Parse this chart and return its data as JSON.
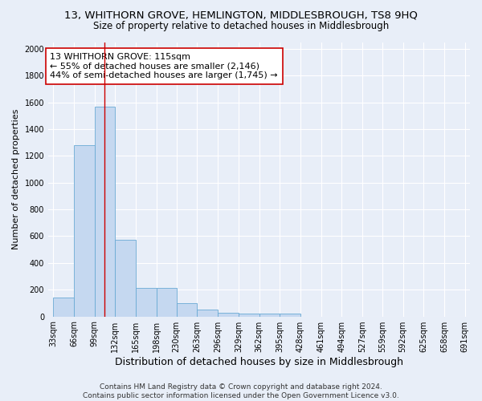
{
  "title": "13, WHITHORN GROVE, HEMLINGTON, MIDDLESBROUGH, TS8 9HQ",
  "subtitle": "Size of property relative to detached houses in Middlesbrough",
  "xlabel": "Distribution of detached houses by size in Middlesbrough",
  "ylabel": "Number of detached properties",
  "bin_edges": [
    33,
    66,
    99,
    132,
    165,
    198,
    230,
    263,
    296,
    329,
    362,
    395,
    428,
    461,
    494,
    527,
    559,
    592,
    625,
    658,
    691
  ],
  "bar_heights": [
    140,
    1280,
    1570,
    570,
    215,
    215,
    100,
    50,
    25,
    20,
    20,
    20,
    0,
    0,
    0,
    0,
    0,
    0,
    0,
    0
  ],
  "bar_color": "#c5d8f0",
  "bar_edge_color": "#6aaad4",
  "background_color": "#e8eef8",
  "grid_color": "#ffffff",
  "red_line_x": 115,
  "red_line_color": "#cc0000",
  "annotation_text": "13 WHITHORN GROVE: 115sqm\n← 55% of detached houses are smaller (2,146)\n44% of semi-detached houses are larger (1,745) →",
  "annotation_box_color": "#ffffff",
  "annotation_box_edge": "#cc0000",
  "ylim": [
    0,
    2050
  ],
  "yticks": [
    0,
    200,
    400,
    600,
    800,
    1000,
    1200,
    1400,
    1600,
    1800,
    2000
  ],
  "footnote": "Contains HM Land Registry data © Crown copyright and database right 2024.\nContains public sector information licensed under the Open Government Licence v3.0.",
  "title_fontsize": 9.5,
  "subtitle_fontsize": 8.5,
  "xlabel_fontsize": 9,
  "ylabel_fontsize": 8,
  "tick_fontsize": 7,
  "annot_fontsize": 8,
  "footnote_fontsize": 6.5
}
